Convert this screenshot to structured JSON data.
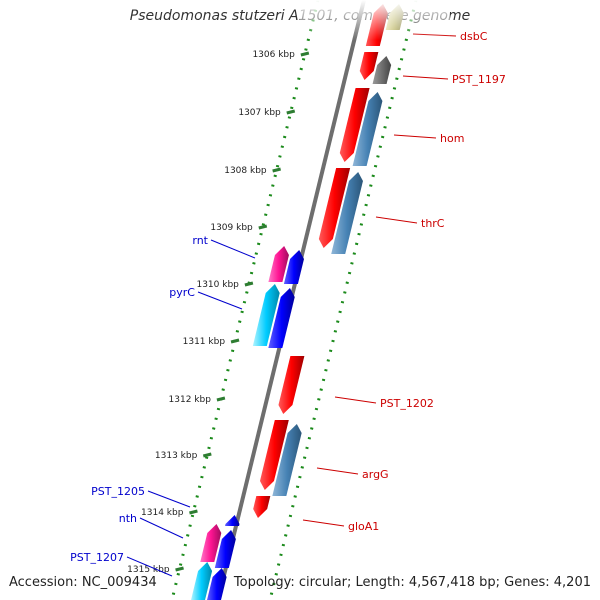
{
  "title": "Pseudomonas stutzeri A1501, complete genome",
  "accession": "Accession: NC_009434",
  "summary": "Topology: circular; Length: 4,567,418 bp; Genes: 4,201",
  "colors": {
    "backbone": "#6e6e6e",
    "tick_major": "#2e7d32",
    "tick_minor": "#1b8a1b",
    "label_right": "#cc0000",
    "label_left": "#0000cc",
    "ruler_text": "#222222"
  },
  "ruler": [
    {
      "text": "1306 kbp"
    },
    {
      "text": "1307 kbp"
    },
    {
      "text": "1308 kbp"
    },
    {
      "text": "1309 kbp"
    },
    {
      "text": "1310 kbp"
    },
    {
      "text": "1311 kbp"
    },
    {
      "text": "1312 kbp"
    },
    {
      "text": "1313 kbp"
    },
    {
      "text": "1314 kbp"
    },
    {
      "text": "1315 kbp"
    }
  ],
  "right_labels": [
    "dsbC",
    "PST_1197",
    "hom",
    "thrC",
    "PST_1202",
    "argG",
    "gloA1"
  ],
  "left_labels": [
    "rnt",
    "pyrC",
    "PST_1205",
    "nth",
    "PST_1207"
  ]
}
